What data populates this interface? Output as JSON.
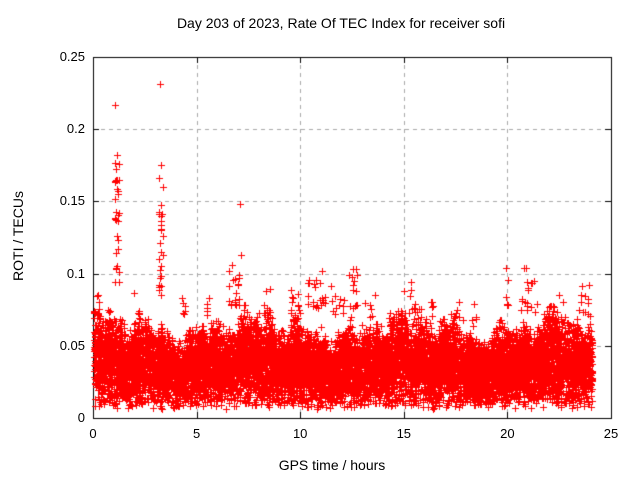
{
  "page": {
    "background": "#ffffff"
  },
  "chart_data": {
    "type": "scatter",
    "title": "Day 203 of 2023, Rate Of TEC Index for receiver sofi",
    "xlabel": "GPS time / hours",
    "ylabel": "ROTI / TECUs",
    "xlim": [
      0,
      25
    ],
    "ylim": [
      0,
      0.25
    ],
    "xticks": [
      0,
      5,
      10,
      15,
      20,
      25
    ],
    "yticks": [
      0,
      0.05,
      0.1,
      0.15,
      0.2,
      0.25
    ],
    "xtick_labels": [
      "0",
      "5",
      "10",
      "15",
      "20",
      "25"
    ],
    "ytick_labels": [
      "0",
      "0.05",
      "0.1",
      "0.15",
      "0.2",
      "0.25"
    ],
    "grid": {
      "show": true,
      "style": "dashed",
      "color": "#a8a8a8",
      "dash": [
        4,
        4
      ]
    },
    "border_color": "#000000",
    "tick_length": 6,
    "marker": {
      "shape": "plus",
      "color": "#ff0000",
      "size": 7
    },
    "x_data_range": [
      0.05,
      24.1
    ],
    "band_summary": {
      "y_floor": 0.006,
      "dense_core": [
        0.02,
        0.06
      ],
      "typical_top": 0.08
    },
    "cloud_gen": {
      "seed": 1337,
      "n": 12000,
      "y_floor": 0.006,
      "amp": 0.06,
      "tail_p": 0.08,
      "tail_amp": 0.022,
      "envelope": [
        [
          0.1,
          0.85,
          1.2
        ],
        [
          0.08,
          2.6,
          0.4
        ],
        [
          0.07,
          5.1,
          2.1
        ],
        [
          0.05,
          9.7,
          0.7
        ]
      ]
    },
    "spikes": [
      {
        "x": 0.2,
        "w": 0.3,
        "y0": 0.072,
        "y1": 0.092,
        "n": 6
      },
      {
        "x": 1.15,
        "w": 0.22,
        "y0": 0.088,
        "y1": 0.182,
        "n": 26,
        "p": 1.0
      },
      {
        "x": 2.1,
        "w": 0.3,
        "y0": 0.072,
        "y1": 0.088,
        "n": 5
      },
      {
        "x": 3.28,
        "w": 0.25,
        "y0": 0.085,
        "y1": 0.175,
        "n": 22,
        "p": 1.0
      },
      {
        "x": 4.4,
        "w": 0.3,
        "y0": 0.072,
        "y1": 0.09,
        "n": 6
      },
      {
        "x": 5.6,
        "w": 0.3,
        "y0": 0.07,
        "y1": 0.085,
        "n": 5
      },
      {
        "x": 6.8,
        "w": 0.55,
        "y0": 0.078,
        "y1": 0.112,
        "n": 18
      },
      {
        "x": 8.4,
        "w": 0.4,
        "y0": 0.072,
        "y1": 0.09,
        "n": 7
      },
      {
        "x": 9.6,
        "w": 0.3,
        "y0": 0.072,
        "y1": 0.09,
        "n": 6
      },
      {
        "x": 9.95,
        "w": 0.25,
        "y0": 0.072,
        "y1": 0.09,
        "n": 5
      },
      {
        "x": 10.6,
        "w": 0.5,
        "y0": 0.076,
        "y1": 0.098,
        "n": 13
      },
      {
        "x": 11.05,
        "w": 0.3,
        "y0": 0.078,
        "y1": 0.102,
        "n": 8
      },
      {
        "x": 11.6,
        "w": 0.25,
        "y0": 0.072,
        "y1": 0.094,
        "n": 6
      },
      {
        "x": 12.0,
        "w": 0.25,
        "y0": 0.07,
        "y1": 0.09,
        "n": 5
      },
      {
        "x": 12.55,
        "w": 0.4,
        "y0": 0.076,
        "y1": 0.103,
        "n": 12
      },
      {
        "x": 13.5,
        "w": 0.3,
        "y0": 0.07,
        "y1": 0.086,
        "n": 5
      },
      {
        "x": 14.4,
        "w": 0.3,
        "y0": 0.068,
        "y1": 0.084,
        "n": 4
      },
      {
        "x": 15.45,
        "w": 0.4,
        "y0": 0.073,
        "y1": 0.096,
        "n": 9
      },
      {
        "x": 16.4,
        "w": 0.3,
        "y0": 0.07,
        "y1": 0.086,
        "n": 5
      },
      {
        "x": 17.6,
        "w": 0.3,
        "y0": 0.07,
        "y1": 0.09,
        "n": 6
      },
      {
        "x": 18.4,
        "w": 0.3,
        "y0": 0.068,
        "y1": 0.084,
        "n": 5
      },
      {
        "x": 19.95,
        "w": 0.2,
        "y0": 0.078,
        "y1": 0.104,
        "n": 5
      },
      {
        "x": 20.9,
        "w": 0.4,
        "y0": 0.075,
        "y1": 0.104,
        "n": 10
      },
      {
        "x": 21.3,
        "w": 0.3,
        "y0": 0.073,
        "y1": 0.095,
        "n": 6
      },
      {
        "x": 22.4,
        "w": 0.3,
        "y0": 0.068,
        "y1": 0.087,
        "n": 5
      },
      {
        "x": 23.6,
        "w": 0.35,
        "y0": 0.073,
        "y1": 0.093,
        "n": 7
      },
      {
        "x": 23.95,
        "w": 0.15,
        "y0": 0.07,
        "y1": 0.097,
        "n": 5
      }
    ],
    "notable_points": [
      [
        1.06,
        0.217
      ],
      [
        3.25,
        0.231
      ],
      [
        1.15,
        0.182
      ],
      [
        3.28,
        0.175
      ],
      [
        7.1,
        0.148
      ],
      [
        7.15,
        0.113
      ],
      [
        6.55,
        0.102
      ],
      [
        1.1,
        0.165
      ],
      [
        1.2,
        0.155
      ],
      [
        1.12,
        0.143
      ],
      [
        3.3,
        0.134
      ],
      [
        3.25,
        0.121
      ],
      [
        3.3,
        0.105
      ],
      [
        11.05,
        0.102
      ],
      [
        12.55,
        0.103
      ],
      [
        19.95,
        0.104
      ],
      [
        20.9,
        0.104
      ]
    ]
  }
}
